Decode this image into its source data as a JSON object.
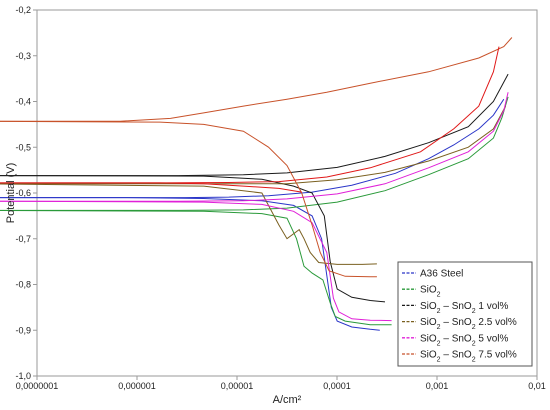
{
  "chart_data": {
    "type": "line",
    "title": "",
    "xlabel": "A/cm²",
    "ylabel": "Potential (V)",
    "xscale": "log",
    "xlim": [
      1e-08,
      0.01
    ],
    "ylim": [
      -1.0,
      -0.2
    ],
    "grid": false,
    "legend_placement": "bottom-right",
    "x_tick_labels": [
      "0,0000001",
      "0,000001",
      "0,00001",
      "0,0001",
      "0,001",
      "0,01"
    ],
    "y_tick_labels": [
      "-0,2",
      "-0,3",
      "-0,4",
      "-0,5",
      "-0,6",
      "-0,7",
      "-0,8",
      "-0,9",
      "-1,0"
    ],
    "series": [
      {
        "name": "A36 Steel",
        "color": "#2a35c8",
        "anodic": [
          [
            2e-09,
            -0.61
          ],
          [
            2e-08,
            -0.61
          ],
          [
            1e-07,
            -0.61
          ],
          [
            6e-07,
            -0.61
          ],
          [
            2e-06,
            -0.609
          ],
          [
            6e-06,
            -0.606
          ],
          [
            2e-05,
            -0.598
          ],
          [
            6e-05,
            -0.583
          ],
          [
            0.0002,
            -0.557
          ],
          [
            0.0005,
            -0.525
          ],
          [
            0.001,
            -0.495
          ],
          [
            0.002,
            -0.46
          ],
          [
            0.003,
            -0.43
          ],
          [
            0.004,
            -0.395
          ]
        ],
        "cathodic": [
          [
            2e-09,
            -0.61
          ],
          [
            1e-07,
            -0.61
          ],
          [
            1e-06,
            -0.612
          ],
          [
            5e-06,
            -0.617
          ],
          [
            1.2e-05,
            -0.627
          ],
          [
            2e-05,
            -0.65
          ],
          [
            2.6e-05,
            -0.7
          ],
          [
            3e-05,
            -0.78
          ],
          [
            3.4e-05,
            -0.85
          ],
          [
            4e-05,
            -0.88
          ],
          [
            6e-05,
            -0.893
          ],
          [
            0.0001,
            -0.898
          ],
          [
            0.00013,
            -0.9
          ]
        ]
      },
      {
        "name": "SiO2",
        "color": "#2a9a3a",
        "anodic": [
          [
            2e-09,
            -0.638
          ],
          [
            2e-08,
            -0.638
          ],
          [
            5e-07,
            -0.638
          ],
          [
            3e-06,
            -0.637
          ],
          [
            1e-05,
            -0.633
          ],
          [
            4e-05,
            -0.62
          ],
          [
            0.00015,
            -0.595
          ],
          [
            0.0005,
            -0.56
          ],
          [
            0.0015,
            -0.525
          ],
          [
            0.003,
            -0.48
          ],
          [
            0.0038,
            -0.435
          ],
          [
            0.0045,
            -0.39
          ]
        ],
        "cathodic": [
          [
            2e-09,
            -0.638
          ],
          [
            1e-06,
            -0.64
          ],
          [
            5e-06,
            -0.645
          ],
          [
            1e-05,
            -0.655
          ],
          [
            1.3e-05,
            -0.7
          ],
          [
            1.6e-05,
            -0.76
          ],
          [
            2e-05,
            -0.775
          ],
          [
            2.7e-05,
            -0.79
          ],
          [
            3.3e-05,
            -0.84
          ],
          [
            3.8e-05,
            -0.87
          ],
          [
            5e-05,
            -0.88
          ],
          [
            0.0001,
            -0.888
          ],
          [
            0.00018,
            -0.888
          ]
        ]
      },
      {
        "name": "SiO2 – SnO2 1 vol%",
        "color": "#1a1a1a",
        "anodic": [
          [
            2e-09,
            -0.562
          ],
          [
            2e-08,
            -0.562
          ],
          [
            5e-07,
            -0.562
          ],
          [
            3e-06,
            -0.56
          ],
          [
            1e-05,
            -0.556
          ],
          [
            4e-05,
            -0.544
          ],
          [
            0.00015,
            -0.52
          ],
          [
            0.0005,
            -0.49
          ],
          [
            0.0015,
            -0.455
          ],
          [
            0.003,
            -0.4
          ],
          [
            0.0045,
            -0.34
          ]
        ],
        "cathodic": [
          [
            2e-09,
            -0.562
          ],
          [
            1e-06,
            -0.563
          ],
          [
            5e-06,
            -0.57
          ],
          [
            1.2e-05,
            -0.585
          ],
          [
            2e-05,
            -0.6
          ],
          [
            2.8e-05,
            -0.65
          ],
          [
            3.3e-05,
            -0.75
          ],
          [
            4e-05,
            -0.81
          ],
          [
            6e-05,
            -0.828
          ],
          [
            0.0001,
            -0.835
          ],
          [
            0.00015,
            -0.838
          ]
        ]
      },
      {
        "name": "SiO2 – SnO2 2.5 vol%",
        "color": "#7a6020",
        "anodic": [
          [
            2e-09,
            -0.58
          ],
          [
            2e-08,
            -0.58
          ],
          [
            5e-07,
            -0.58
          ],
          [
            3e-06,
            -0.58
          ],
          [
            1e-05,
            -0.58
          ],
          [
            4e-05,
            -0.571
          ],
          [
            0.00015,
            -0.555
          ],
          [
            0.0005,
            -0.53
          ],
          [
            0.0015,
            -0.5
          ],
          [
            0.003,
            -0.46
          ],
          [
            0.0042,
            -0.41
          ]
        ],
        "cathodic": [
          [
            2e-09,
            -0.58
          ],
          [
            1e-06,
            -0.585
          ],
          [
            5e-06,
            -0.6
          ],
          [
            8e-06,
            -0.67
          ],
          [
            1e-05,
            -0.7
          ],
          [
            1.4e-05,
            -0.68
          ],
          [
            1.6e-05,
            -0.7
          ],
          [
            1.9e-05,
            -0.73
          ],
          [
            2.4e-05,
            -0.752
          ],
          [
            4e-05,
            -0.756
          ],
          [
            8e-05,
            -0.756
          ],
          [
            0.00012,
            -0.755
          ]
        ]
      },
      {
        "name": "SiO2 – SnO2 5 vol%",
        "color": "#e020d8",
        "anodic": [
          [
            2e-09,
            -0.618
          ],
          [
            2e-08,
            -0.618
          ],
          [
            5e-07,
            -0.618
          ],
          [
            3e-06,
            -0.617
          ],
          [
            1e-05,
            -0.613
          ],
          [
            4e-05,
            -0.602
          ],
          [
            0.00015,
            -0.58
          ],
          [
            0.0005,
            -0.545
          ],
          [
            0.0015,
            -0.51
          ],
          [
            0.003,
            -0.465
          ],
          [
            0.004,
            -0.42
          ],
          [
            0.0045,
            -0.38
          ]
        ],
        "cathodic": [
          [
            2e-09,
            -0.618
          ],
          [
            1e-06,
            -0.62
          ],
          [
            5e-06,
            -0.625
          ],
          [
            1.2e-05,
            -0.64
          ],
          [
            2e-05,
            -0.665
          ],
          [
            3e-05,
            -0.73
          ],
          [
            3.6e-05,
            -0.83
          ],
          [
            4.2e-05,
            -0.86
          ],
          [
            6e-05,
            -0.875
          ],
          [
            0.0001,
            -0.878
          ],
          [
            0.00018,
            -0.879
          ]
        ]
      },
      {
        "name": "SiO2 – SnO2 7.5 vol%",
        "color": "#c8522a",
        "anodic": [
          [
            1e-09,
            -0.443
          ],
          [
            1e-08,
            -0.443
          ],
          [
            1e-07,
            -0.443
          ],
          [
            4e-07,
            -0.437
          ],
          [
            1e-06,
            -0.425
          ],
          [
            3e-06,
            -0.41
          ],
          [
            1e-05,
            -0.395
          ],
          [
            3e-05,
            -0.38
          ],
          [
            0.0001,
            -0.36
          ],
          [
            0.0005,
            -0.335
          ],
          [
            0.002,
            -0.305
          ],
          [
            0.004,
            -0.28
          ],
          [
            0.005,
            -0.26
          ]
        ],
        "cathodic": [
          [
            1e-09,
            -0.443
          ],
          [
            3e-07,
            -0.445
          ],
          [
            1e-06,
            -0.45
          ],
          [
            3e-06,
            -0.465
          ],
          [
            6e-06,
            -0.5
          ],
          [
            1e-05,
            -0.54
          ],
          [
            1.5e-05,
            -0.6
          ],
          [
            2e-05,
            -0.67
          ],
          [
            2.5e-05,
            -0.73
          ],
          [
            3.2e-05,
            -0.77
          ],
          [
            5e-05,
            -0.782
          ],
          [
            0.0001,
            -0.783
          ],
          [
            0.00012,
            -0.783
          ]
        ]
      },
      {
        "name": "",
        "color": "#e01818",
        "anodic": [
          [
            3e-09,
            -0.578
          ],
          [
            2e-08,
            -0.578
          ],
          [
            3e-07,
            -0.578
          ],
          [
            2e-06,
            -0.577
          ],
          [
            8e-06,
            -0.575
          ],
          [
            3e-05,
            -0.565
          ],
          [
            0.0001,
            -0.545
          ],
          [
            0.0004,
            -0.51
          ],
          [
            0.001,
            -0.46
          ],
          [
            0.002,
            -0.41
          ],
          [
            0.003,
            -0.335
          ],
          [
            0.0035,
            -0.28
          ]
        ],
        "cathodic": [
          [
            3e-09,
            -0.578
          ],
          [
            3e-07,
            -0.578
          ],
          [
            1e-06,
            -0.58
          ],
          [
            3e-06,
            -0.585
          ],
          [
            8e-06,
            -0.59
          ],
          [
            1.5e-05,
            -0.598
          ]
        ]
      }
    ],
    "legend": [
      {
        "base": "A36 Steel",
        "parts": [
          [
            "A36 Steel",
            ""
          ]
        ],
        "color": "#2a35c8"
      },
      {
        "base": "SiO2",
        "parts": [
          [
            "SiO",
            ""
          ],
          [
            "2",
            "sub"
          ]
        ],
        "color": "#2a9a3a"
      },
      {
        "base": "SiO2 – SnO2 1 vol%",
        "parts": [
          [
            "SiO",
            ""
          ],
          [
            "2",
            "sub"
          ],
          [
            " – SnO",
            ""
          ],
          [
            "2",
            "sub"
          ],
          [
            " 1 vol%",
            ""
          ]
        ],
        "color": "#1a1a1a"
      },
      {
        "base": "SiO2 – SnO2 2.5 vol%",
        "parts": [
          [
            "SiO",
            ""
          ],
          [
            "2",
            "sub"
          ],
          [
            " – SnO",
            ""
          ],
          [
            "2",
            "sub"
          ],
          [
            " 2.5 vol%",
            ""
          ]
        ],
        "color": "#7a6020"
      },
      {
        "base": "SiO2 – SnO2 5 vol%",
        "parts": [
          [
            "SiO",
            ""
          ],
          [
            "2",
            "sub"
          ],
          [
            " – SnO",
            ""
          ],
          [
            "2",
            "sub"
          ],
          [
            " 5 vol%",
            ""
          ]
        ],
        "color": "#e020d8"
      },
      {
        "base": "SiO2 – SnO2 7.5 vol%",
        "parts": [
          [
            "SiO",
            ""
          ],
          [
            "2",
            "sub"
          ],
          [
            " – SnO",
            ""
          ],
          [
            "2",
            "sub"
          ],
          [
            " 7.5 vol%",
            ""
          ]
        ],
        "color": "#c8522a"
      }
    ]
  }
}
